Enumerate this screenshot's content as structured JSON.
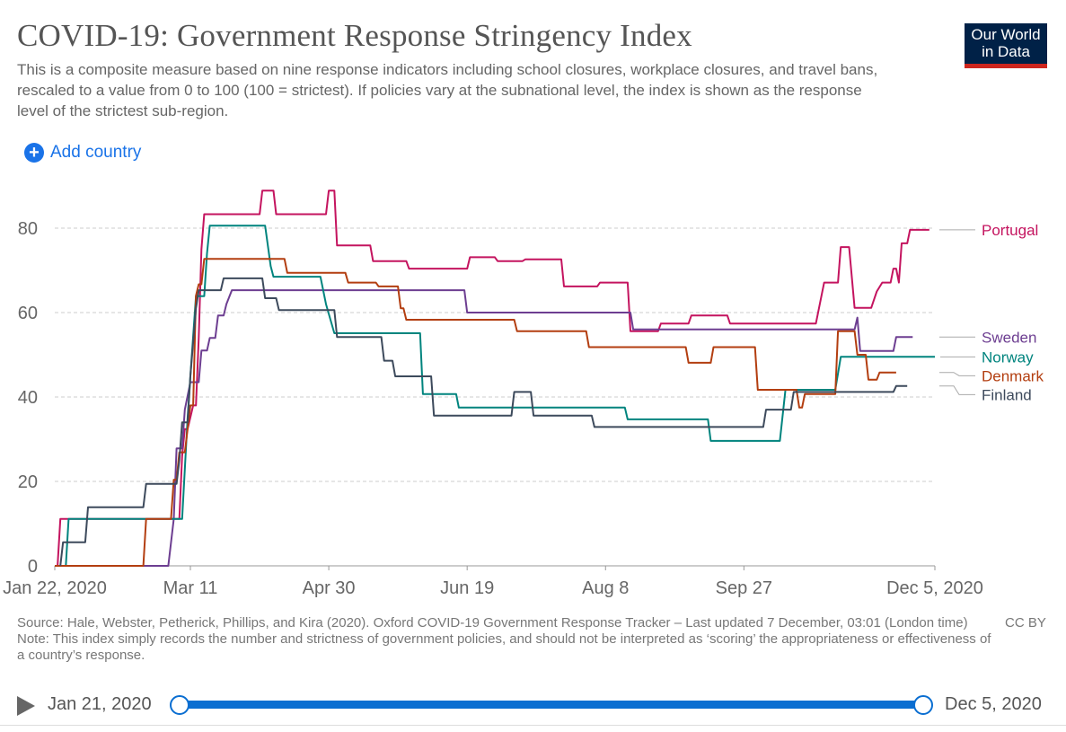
{
  "header": {
    "title": "COVID-19: Government Response Stringency Index",
    "subtitle": "This is a composite measure based on nine response indicators including school closures, workplace closures, and travel bans, rescaled to a value from 0 to 100 (100 = strictest). If policies vary at the subnational level, the index is shown as the response level of the strictest sub-region.",
    "logo_line1": "Our World",
    "logo_line2": "in Data"
  },
  "controls": {
    "add_country_label": "Add country",
    "add_icon_glyph": "+"
  },
  "colors": {
    "Portugal": "#c4145f",
    "Sweden": "#6d3e91",
    "Norway": "#00847e",
    "Denmark": "#b33e10",
    "Finland": "#3d4a5c",
    "grid": "#cccccc",
    "axis": "#999999"
  },
  "chart_data": {
    "type": "line",
    "title": "COVID-19: Government Response Stringency Index",
    "xlabel": "",
    "ylabel": "",
    "x_unit": "days since Jan 22, 2020",
    "xlim": [
      0,
      318
    ],
    "ylim": [
      0,
      88
    ],
    "yticks": [
      0,
      20,
      40,
      60,
      80
    ],
    "xticks": [
      {
        "x": 0,
        "label": "Jan 22, 2020"
      },
      {
        "x": 49,
        "label": "Mar 11"
      },
      {
        "x": 99,
        "label": "Apr 30"
      },
      {
        "x": 149,
        "label": "Jun 19"
      },
      {
        "x": 199,
        "label": "Aug 8"
      },
      {
        "x": 249,
        "label": "Sep 27"
      },
      {
        "x": 318,
        "label": "Dec 5, 2020"
      }
    ],
    "series": [
      {
        "name": "Portugal",
        "label_value": 79.6,
        "points": [
          [
            1,
            0
          ],
          [
            2,
            11.1
          ],
          [
            45,
            11.1
          ],
          [
            46,
            26
          ],
          [
            47,
            32.4
          ],
          [
            48,
            32.4
          ],
          [
            49,
            35.2
          ],
          [
            50,
            38
          ],
          [
            51,
            38
          ],
          [
            52,
            54
          ],
          [
            53,
            75
          ],
          [
            54,
            83.3
          ],
          [
            74,
            83.3
          ],
          [
            75,
            88.9
          ],
          [
            79,
            88.9
          ],
          [
            80,
            83.3
          ],
          [
            98,
            83.3
          ],
          [
            99,
            88.9
          ],
          [
            101,
            88.9
          ],
          [
            102,
            75.9
          ],
          [
            114,
            75.9
          ],
          [
            115,
            72.2
          ],
          [
            127,
            72.2
          ],
          [
            128,
            70.4
          ],
          [
            149,
            70.4
          ],
          [
            150,
            73.1
          ],
          [
            159,
            73.1
          ],
          [
            160,
            72.2
          ],
          [
            169,
            72.2
          ],
          [
            170,
            72.6
          ],
          [
            183,
            72.6
          ],
          [
            184,
            66.2
          ],
          [
            196,
            66.2
          ],
          [
            197,
            67.1
          ],
          [
            207,
            67.1
          ],
          [
            208,
            55.6
          ],
          [
            218,
            55.6
          ],
          [
            219,
            57.4
          ],
          [
            229,
            57.4
          ],
          [
            230,
            59.3
          ],
          [
            243,
            59.3
          ],
          [
            244,
            57.4
          ],
          [
            275,
            57.4
          ],
          [
            278,
            67.1
          ],
          [
            283,
            67.1
          ],
          [
            284,
            75.5
          ],
          [
            287,
            75.5
          ],
          [
            289,
            61.1
          ],
          [
            295,
            61.1
          ],
          [
            297,
            65
          ],
          [
            299,
            67.1
          ],
          [
            302,
            67.1
          ],
          [
            303,
            70.4
          ],
          [
            304,
            70.4
          ],
          [
            305,
            67.1
          ],
          [
            306,
            76.4
          ],
          [
            308,
            76.4
          ],
          [
            309,
            79.6
          ],
          [
            316,
            79.6
          ]
        ]
      },
      {
        "name": "Sweden",
        "label_value": 54.2,
        "points": [
          [
            0,
            0
          ],
          [
            41,
            0
          ],
          [
            43,
            11.1
          ],
          [
            44,
            27.8
          ],
          [
            46,
            27.8
          ],
          [
            47,
            37
          ],
          [
            49,
            43.5
          ],
          [
            52,
            43.5
          ],
          [
            53,
            51
          ],
          [
            55,
            51
          ],
          [
            56,
            54
          ],
          [
            58,
            54
          ],
          [
            59,
            59.3
          ],
          [
            61,
            59.3
          ],
          [
            62,
            62
          ],
          [
            64,
            65.3
          ],
          [
            148,
            65.3
          ],
          [
            149,
            60
          ],
          [
            208,
            60
          ],
          [
            209,
            56
          ],
          [
            289,
            56
          ],
          [
            290,
            58.8
          ],
          [
            291,
            50.9
          ],
          [
            303,
            50.9
          ],
          [
            304,
            54.2
          ],
          [
            310,
            54.2
          ]
        ]
      },
      {
        "name": "Norway",
        "label_value": 49.5,
        "points": [
          [
            4,
            0
          ],
          [
            5,
            11.1
          ],
          [
            46,
            11.1
          ],
          [
            48,
            35
          ],
          [
            49,
            45
          ],
          [
            51,
            63.9
          ],
          [
            54,
            63.9
          ],
          [
            55,
            74
          ],
          [
            56,
            80.6
          ],
          [
            76,
            80.6
          ],
          [
            78,
            71
          ],
          [
            79,
            68.5
          ],
          [
            96,
            68.5
          ],
          [
            98,
            62
          ],
          [
            101,
            55.1
          ],
          [
            132,
            55.1
          ],
          [
            133,
            40.7
          ],
          [
            145,
            40.7
          ],
          [
            146,
            37.5
          ],
          [
            206,
            37.5
          ],
          [
            207,
            34.7
          ],
          [
            236,
            34.7
          ],
          [
            237,
            29.6
          ],
          [
            262,
            29.6
          ],
          [
            264,
            41.7
          ],
          [
            282,
            41.7
          ],
          [
            284,
            49.5
          ],
          [
            318,
            49.5
          ]
        ]
      },
      {
        "name": "Denmark",
        "label_value": 45.8,
        "points": [
          [
            0,
            0
          ],
          [
            32,
            0
          ],
          [
            33,
            11.1
          ],
          [
            42,
            11.1
          ],
          [
            43,
            20.4
          ],
          [
            44,
            20.4
          ],
          [
            45,
            26.9
          ],
          [
            47,
            26.9
          ],
          [
            48,
            32.4
          ],
          [
            49,
            38
          ],
          [
            50,
            38
          ],
          [
            51,
            64
          ],
          [
            52,
            66.7
          ],
          [
            53,
            66.7
          ],
          [
            54,
            72.7
          ],
          [
            83,
            72.7
          ],
          [
            84,
            69.4
          ],
          [
            105,
            69.4
          ],
          [
            106,
            67.1
          ],
          [
            116,
            67.1
          ],
          [
            117,
            66.2
          ],
          [
            124,
            66.2
          ],
          [
            125,
            61
          ],
          [
            126,
            61
          ],
          [
            127,
            58.3
          ],
          [
            166,
            58.3
          ],
          [
            167,
            55.6
          ],
          [
            192,
            55.6
          ],
          [
            193,
            51.8
          ],
          [
            228,
            51.8
          ],
          [
            229,
            48.1
          ],
          [
            237,
            48.1
          ],
          [
            238,
            51.8
          ],
          [
            253,
            51.8
          ],
          [
            254,
            41.7
          ],
          [
            268,
            41.7
          ],
          [
            269,
            37.5
          ],
          [
            270,
            37.5
          ],
          [
            271,
            40.7
          ],
          [
            282,
            40.7
          ],
          [
            283,
            55.6
          ],
          [
            289,
            55.6
          ],
          [
            290,
            50
          ],
          [
            293,
            50
          ],
          [
            294,
            44.1
          ],
          [
            297,
            44.1
          ],
          [
            298,
            45.8
          ],
          [
            304,
            45.8
          ]
        ]
      },
      {
        "name": "Finland",
        "label_value": 42.6,
        "points": [
          [
            2,
            0
          ],
          [
            3,
            5.6
          ],
          [
            11,
            5.6
          ],
          [
            12,
            13.9
          ],
          [
            32,
            13.9
          ],
          [
            33,
            19.4
          ],
          [
            44,
            19.4
          ],
          [
            45,
            25
          ],
          [
            46,
            34
          ],
          [
            48,
            34
          ],
          [
            49,
            45
          ],
          [
            51,
            61
          ],
          [
            52,
            65.3
          ],
          [
            60,
            65.3
          ],
          [
            61,
            68.1
          ],
          [
            75,
            68.1
          ],
          [
            76,
            63.4
          ],
          [
            80,
            63.4
          ],
          [
            81,
            60.6
          ],
          [
            101,
            60.6
          ],
          [
            102,
            54.2
          ],
          [
            118,
            54.2
          ],
          [
            119,
            48.6
          ],
          [
            122,
            48.6
          ],
          [
            123,
            44.9
          ],
          [
            136,
            44.9
          ],
          [
            137,
            35.6
          ],
          [
            165,
            35.6
          ],
          [
            166,
            41.2
          ],
          [
            172,
            41.2
          ],
          [
            173,
            35.6
          ],
          [
            194,
            35.6
          ],
          [
            195,
            32.9
          ],
          [
            256,
            32.9
          ],
          [
            257,
            37
          ],
          [
            266,
            37
          ],
          [
            267,
            41.2
          ],
          [
            303,
            41.2
          ],
          [
            304,
            42.6
          ],
          [
            308,
            42.6
          ]
        ]
      }
    ]
  },
  "footer": {
    "source": "Source: Hale, Webster, Petherick, Phillips, and Kira (2020). Oxford COVID-19 Government Response Tracker – Last updated 7 December, 03:01 (London time)",
    "note": "Note: This index simply records the number and strictness of government policies, and should not be interpreted as ‘scoring’ the appropriateness or effectiveness of a country’s response.",
    "license": "CC BY"
  },
  "timeline": {
    "start_label": "Jan 21, 2020",
    "end_label": "Dec 5, 2020",
    "start_fraction": 0,
    "end_fraction": 1
  }
}
